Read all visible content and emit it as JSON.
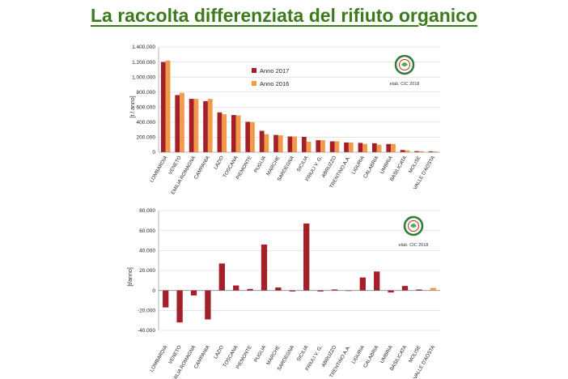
{
  "slide": {
    "title": "La raccolta differenziata del rifiuto organico"
  },
  "colors": {
    "title": "#3d7a1e",
    "series_2017": "#a3202a",
    "series_2016": "#f29a4a",
    "delta": "#a3202a",
    "delta_highlight": "#f29a4a",
    "logo_ring": "#2e7d32"
  },
  "chart_data": [
    {
      "type": "bar",
      "title": "",
      "xlabel": "",
      "ylabel": "[t / anno]",
      "ylim": [
        0,
        1400000
      ],
      "yticks": [
        "0",
        "200.000",
        "400.000",
        "600.000",
        "800.000",
        "1.000.000",
        "1.200.000",
        "1.400.000"
      ],
      "grid": true,
      "legend_placement": "top-center",
      "categories": [
        "LOMBARDIA",
        "VENETO",
        "EMILIA ROMAGNA",
        "CAMPANIA",
        "LAZIO",
        "TOSCANA",
        "PIEMONTE",
        "PUGLIA",
        "MARCHE",
        "SARDEGNA",
        "SICILIA",
        "FRIULI V. G.",
        "ABRUZZO",
        "TRENTINO A.A.",
        "LIGURIA",
        "CALABRIA",
        "UMBRIA",
        "BASILICATA",
        "MOLISE",
        "VALLE D'AOSTA"
      ],
      "series": [
        {
          "name": "Anno 2017",
          "color": "#a3202a",
          "values": [
            1200000,
            760000,
            710000,
            680000,
            530000,
            495000,
            405000,
            285000,
            230000,
            210000,
            205000,
            160000,
            145000,
            130000,
            125000,
            120000,
            110000,
            30000,
            15000,
            12000
          ]
        },
        {
          "name": "Anno 2016",
          "color": "#f29a4a",
          "values": [
            1220000,
            790000,
            710000,
            710000,
            505000,
            490000,
            400000,
            240000,
            225000,
            210000,
            140000,
            160000,
            145000,
            130000,
            110000,
            100000,
            110000,
            25000,
            13000,
            10000
          ]
        }
      ],
      "credit": "elab. CIC 2018"
    },
    {
      "type": "bar",
      "title": "",
      "xlabel": "",
      "ylabel": "[t/anno]",
      "ylim": [
        -40000,
        80000
      ],
      "yticks": [
        "-40.000",
        "-20.000",
        "0",
        "20.000",
        "40.000",
        "60.000",
        "80.000"
      ],
      "grid": true,
      "categories": [
        "LOMBARDIA",
        "VENETO",
        "EMILIA ROMAGNA",
        "CAMPANIA",
        "LAZIO",
        "TOSCANA",
        "PIEMONTE",
        "PUGLIA",
        "MARCHE",
        "SARDEGNA",
        "SICILIA",
        "FRIULI V. G.",
        "ABRUZZO",
        "TRENTINO A.A.",
        "LIGURIA",
        "CALABRIA",
        "UMBRIA",
        "BASILICATA",
        "MOLISE",
        "VALLE D'AOSTA"
      ],
      "values": [
        -17000,
        -32000,
        -5000,
        -29000,
        27000,
        5000,
        1500,
        46000,
        3000,
        -1000,
        67000,
        -1000,
        1000,
        0,
        13000,
        19000,
        -2000,
        4500,
        1000,
        2500
      ],
      "credit": "elab. CIC 2018"
    }
  ]
}
